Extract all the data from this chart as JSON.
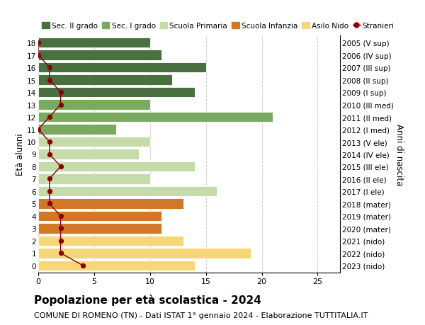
{
  "ages": [
    18,
    17,
    16,
    15,
    14,
    13,
    12,
    11,
    10,
    9,
    8,
    7,
    6,
    5,
    4,
    3,
    2,
    1,
    0
  ],
  "right_labels": [
    "2005 (V sup)",
    "2006 (IV sup)",
    "2007 (III sup)",
    "2008 (II sup)",
    "2009 (I sup)",
    "2010 (III med)",
    "2011 (II med)",
    "2012 (I med)",
    "2013 (V ele)",
    "2014 (IV ele)",
    "2015 (III ele)",
    "2016 (II ele)",
    "2017 (I ele)",
    "2018 (mater)",
    "2019 (mater)",
    "2020 (mater)",
    "2021 (nido)",
    "2022 (nido)",
    "2023 (nido)"
  ],
  "bar_values": [
    10,
    11,
    15,
    12,
    14,
    10,
    21,
    7,
    10,
    9,
    14,
    10,
    16,
    13,
    11,
    11,
    13,
    19,
    14
  ],
  "bar_colors": [
    "#4a7040",
    "#4a7040",
    "#4a7040",
    "#4a7040",
    "#4a7040",
    "#7aaa60",
    "#7aaa60",
    "#7aaa60",
    "#c5dba8",
    "#c5dba8",
    "#c5dba8",
    "#c5dba8",
    "#c5dba8",
    "#d07828",
    "#d07828",
    "#d07828",
    "#f5d77a",
    "#f5d77a",
    "#f5d77a"
  ],
  "stranieri_values": [
    0,
    0,
    1,
    1,
    2,
    2,
    1,
    0,
    1,
    1,
    2,
    1,
    1,
    1,
    2,
    2,
    2,
    2,
    4
  ],
  "stranieri_color": "#8b0000",
  "legend_items": [
    {
      "label": "Sec. II grado",
      "color": "#4a7040",
      "type": "patch"
    },
    {
      "label": "Sec. I grado",
      "color": "#7aaa60",
      "type": "patch"
    },
    {
      "label": "Scuola Primaria",
      "color": "#c5dba8",
      "type": "patch"
    },
    {
      "label": "Scuola Infanzia",
      "color": "#d07828",
      "type": "patch"
    },
    {
      "label": "Asilo Nido",
      "color": "#f5d77a",
      "type": "patch"
    },
    {
      "label": "Stranieri",
      "color": "#8b0000",
      "type": "line"
    }
  ],
  "ylabel_left": "Età alunni",
  "ylabel_right": "Anni di nascita",
  "xlim": [
    0,
    27
  ],
  "xticks": [
    0,
    5,
    10,
    15,
    20,
    25
  ],
  "title": "Popolazione per età scolastica - 2024",
  "subtitle": "COMUNE DI ROMENO (TN) - Dati ISTAT 1° gennaio 2024 - Elaborazione TUTTITALIA.IT",
  "title_fontsize": 11,
  "subtitle_fontsize": 8,
  "background_color": "#ffffff",
  "grid_color": "#cccccc"
}
